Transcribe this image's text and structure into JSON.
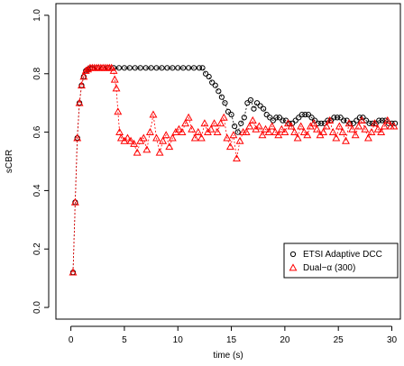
{
  "chart_data": {
    "type": "scatter",
    "xlabel": "time (s)",
    "ylabel": "sCBR",
    "xlim": [
      -1.4,
      30.8
    ],
    "ylim": [
      -0.04,
      1.04
    ],
    "x_ticks": [
      0,
      5,
      10,
      15,
      20,
      25,
      30
    ],
    "x_tick_labels": [
      "0",
      "5",
      "10",
      "15",
      "20",
      "25",
      "30"
    ],
    "y_ticks": [
      0.0,
      0.2,
      0.4,
      0.6,
      0.8,
      1.0
    ],
    "y_tick_labels": [
      "0.0",
      "0.2",
      "0.4",
      "0.6",
      "0.8",
      "1.0"
    ],
    "legend_position": "bottom-right",
    "grid": false,
    "series": [
      {
        "name": "ETSI Adaptive DCC",
        "marker": "circle",
        "color": "#000000",
        "line": "dashed",
        "points": [
          [
            0.2,
            0.12
          ],
          [
            0.4,
            0.36
          ],
          [
            0.6,
            0.58
          ],
          [
            0.8,
            0.7
          ],
          [
            1.0,
            0.76
          ],
          [
            1.2,
            0.79
          ],
          [
            1.4,
            0.81
          ],
          [
            1.6,
            0.815
          ],
          [
            1.8,
            0.82
          ],
          [
            2.0,
            0.82
          ],
          [
            2.5,
            0.82
          ],
          [
            3.0,
            0.82
          ],
          [
            3.5,
            0.82
          ],
          [
            4.0,
            0.82
          ],
          [
            4.5,
            0.82
          ],
          [
            5.0,
            0.82
          ],
          [
            5.5,
            0.82
          ],
          [
            6.0,
            0.82
          ],
          [
            6.5,
            0.82
          ],
          [
            7.0,
            0.82
          ],
          [
            7.5,
            0.82
          ],
          [
            8.0,
            0.82
          ],
          [
            8.5,
            0.82
          ],
          [
            9.0,
            0.82
          ],
          [
            9.5,
            0.82
          ],
          [
            10.0,
            0.82
          ],
          [
            10.5,
            0.82
          ],
          [
            11.0,
            0.82
          ],
          [
            11.5,
            0.82
          ],
          [
            12.0,
            0.82
          ],
          [
            12.3,
            0.82
          ],
          [
            12.6,
            0.8
          ],
          [
            12.9,
            0.79
          ],
          [
            13.2,
            0.77
          ],
          [
            13.5,
            0.76
          ],
          [
            13.8,
            0.74
          ],
          [
            14.1,
            0.72
          ],
          [
            14.4,
            0.7
          ],
          [
            14.7,
            0.67
          ],
          [
            15.0,
            0.66
          ],
          [
            15.3,
            0.62
          ],
          [
            15.6,
            0.6
          ],
          [
            15.9,
            0.63
          ],
          [
            16.2,
            0.65
          ],
          [
            16.5,
            0.7
          ],
          [
            16.8,
            0.71
          ],
          [
            17.1,
            0.68
          ],
          [
            17.4,
            0.7
          ],
          [
            17.7,
            0.69
          ],
          [
            18.0,
            0.68
          ],
          [
            18.3,
            0.66
          ],
          [
            18.6,
            0.65
          ],
          [
            18.9,
            0.64
          ],
          [
            19.2,
            0.65
          ],
          [
            19.5,
            0.65
          ],
          [
            19.8,
            0.64
          ],
          [
            20.1,
            0.64
          ],
          [
            20.4,
            0.63
          ],
          [
            20.7,
            0.63
          ],
          [
            21.0,
            0.64
          ],
          [
            21.3,
            0.65
          ],
          [
            21.6,
            0.66
          ],
          [
            21.9,
            0.66
          ],
          [
            22.2,
            0.66
          ],
          [
            22.5,
            0.65
          ],
          [
            22.8,
            0.64
          ],
          [
            23.1,
            0.63
          ],
          [
            23.4,
            0.63
          ],
          [
            23.7,
            0.63
          ],
          [
            24.0,
            0.64
          ],
          [
            24.3,
            0.64
          ],
          [
            24.6,
            0.65
          ],
          [
            24.9,
            0.65
          ],
          [
            25.2,
            0.65
          ],
          [
            25.5,
            0.64
          ],
          [
            25.8,
            0.64
          ],
          [
            26.1,
            0.63
          ],
          [
            26.4,
            0.63
          ],
          [
            26.7,
            0.64
          ],
          [
            27.0,
            0.65
          ],
          [
            27.3,
            0.65
          ],
          [
            27.6,
            0.64
          ],
          [
            27.9,
            0.63
          ],
          [
            28.2,
            0.63
          ],
          [
            28.5,
            0.63
          ],
          [
            28.8,
            0.64
          ],
          [
            29.1,
            0.64
          ],
          [
            29.4,
            0.64
          ],
          [
            29.7,
            0.63
          ],
          [
            30.0,
            0.63
          ],
          [
            30.3,
            0.63
          ]
        ]
      },
      {
        "name": "Dual−α (300)",
        "marker": "triangle",
        "color": "#ff0000",
        "line": "dashed",
        "points": [
          [
            0.2,
            0.12
          ],
          [
            0.4,
            0.36
          ],
          [
            0.6,
            0.58
          ],
          [
            0.8,
            0.7
          ],
          [
            1.0,
            0.76
          ],
          [
            1.2,
            0.79
          ],
          [
            1.4,
            0.81
          ],
          [
            1.6,
            0.815
          ],
          [
            1.8,
            0.82
          ],
          [
            2.0,
            0.82
          ],
          [
            2.2,
            0.82
          ],
          [
            2.4,
            0.82
          ],
          [
            2.6,
            0.82
          ],
          [
            2.8,
            0.82
          ],
          [
            3.0,
            0.82
          ],
          [
            3.2,
            0.82
          ],
          [
            3.4,
            0.82
          ],
          [
            3.6,
            0.82
          ],
          [
            3.8,
            0.82
          ],
          [
            4.0,
            0.81
          ],
          [
            4.1,
            0.78
          ],
          [
            4.25,
            0.75
          ],
          [
            4.4,
            0.67
          ],
          [
            4.55,
            0.6
          ],
          [
            4.7,
            0.58
          ],
          [
            5.0,
            0.57
          ],
          [
            5.3,
            0.58
          ],
          [
            5.6,
            0.57
          ],
          [
            5.9,
            0.56
          ],
          [
            6.2,
            0.53
          ],
          [
            6.5,
            0.57
          ],
          [
            6.8,
            0.58
          ],
          [
            7.1,
            0.54
          ],
          [
            7.4,
            0.6
          ],
          [
            7.7,
            0.66
          ],
          [
            8.0,
            0.58
          ],
          [
            8.3,
            0.53
          ],
          [
            8.6,
            0.57
          ],
          [
            8.9,
            0.59
          ],
          [
            9.2,
            0.55
          ],
          [
            9.5,
            0.58
          ],
          [
            9.8,
            0.6
          ],
          [
            10.1,
            0.61
          ],
          [
            10.4,
            0.6
          ],
          [
            10.7,
            0.63
          ],
          [
            11.0,
            0.65
          ],
          [
            11.3,
            0.61
          ],
          [
            11.6,
            0.58
          ],
          [
            11.9,
            0.6
          ],
          [
            12.2,
            0.58
          ],
          [
            12.5,
            0.63
          ],
          [
            12.8,
            0.6
          ],
          [
            13.1,
            0.61
          ],
          [
            13.4,
            0.63
          ],
          [
            13.7,
            0.6
          ],
          [
            14.0,
            0.63
          ],
          [
            14.3,
            0.65
          ],
          [
            14.6,
            0.58
          ],
          [
            14.9,
            0.55
          ],
          [
            15.2,
            0.59
          ],
          [
            15.5,
            0.51
          ],
          [
            15.8,
            0.57
          ],
          [
            16.1,
            0.6
          ],
          [
            16.4,
            0.6
          ],
          [
            16.7,
            0.62
          ],
          [
            17.0,
            0.64
          ],
          [
            17.3,
            0.61
          ],
          [
            17.6,
            0.62
          ],
          [
            17.9,
            0.59
          ],
          [
            18.2,
            0.61
          ],
          [
            18.5,
            0.6
          ],
          [
            18.8,
            0.62
          ],
          [
            19.1,
            0.6
          ],
          [
            19.4,
            0.59
          ],
          [
            19.7,
            0.61
          ],
          [
            20.0,
            0.6
          ],
          [
            20.3,
            0.63
          ],
          [
            20.6,
            0.62
          ],
          [
            20.9,
            0.6
          ],
          [
            21.2,
            0.58
          ],
          [
            21.5,
            0.62
          ],
          [
            21.8,
            0.6
          ],
          [
            22.1,
            0.59
          ],
          [
            22.4,
            0.62
          ],
          [
            22.7,
            0.63
          ],
          [
            23.0,
            0.61
          ],
          [
            23.3,
            0.59
          ],
          [
            23.6,
            0.6
          ],
          [
            23.9,
            0.62
          ],
          [
            24.2,
            0.64
          ],
          [
            24.5,
            0.6
          ],
          [
            24.8,
            0.58
          ],
          [
            25.1,
            0.62
          ],
          [
            25.4,
            0.6
          ],
          [
            25.7,
            0.57
          ],
          [
            26.0,
            0.63
          ],
          [
            26.3,
            0.61
          ],
          [
            26.6,
            0.59
          ],
          [
            26.9,
            0.62
          ],
          [
            27.2,
            0.64
          ],
          [
            27.5,
            0.61
          ],
          [
            27.8,
            0.58
          ],
          [
            28.1,
            0.6
          ],
          [
            28.4,
            0.63
          ],
          [
            28.7,
            0.61
          ],
          [
            29.0,
            0.6
          ],
          [
            29.3,
            0.62
          ],
          [
            29.6,
            0.64
          ],
          [
            29.9,
            0.62
          ],
          [
            30.2,
            0.62
          ]
        ]
      }
    ]
  }
}
